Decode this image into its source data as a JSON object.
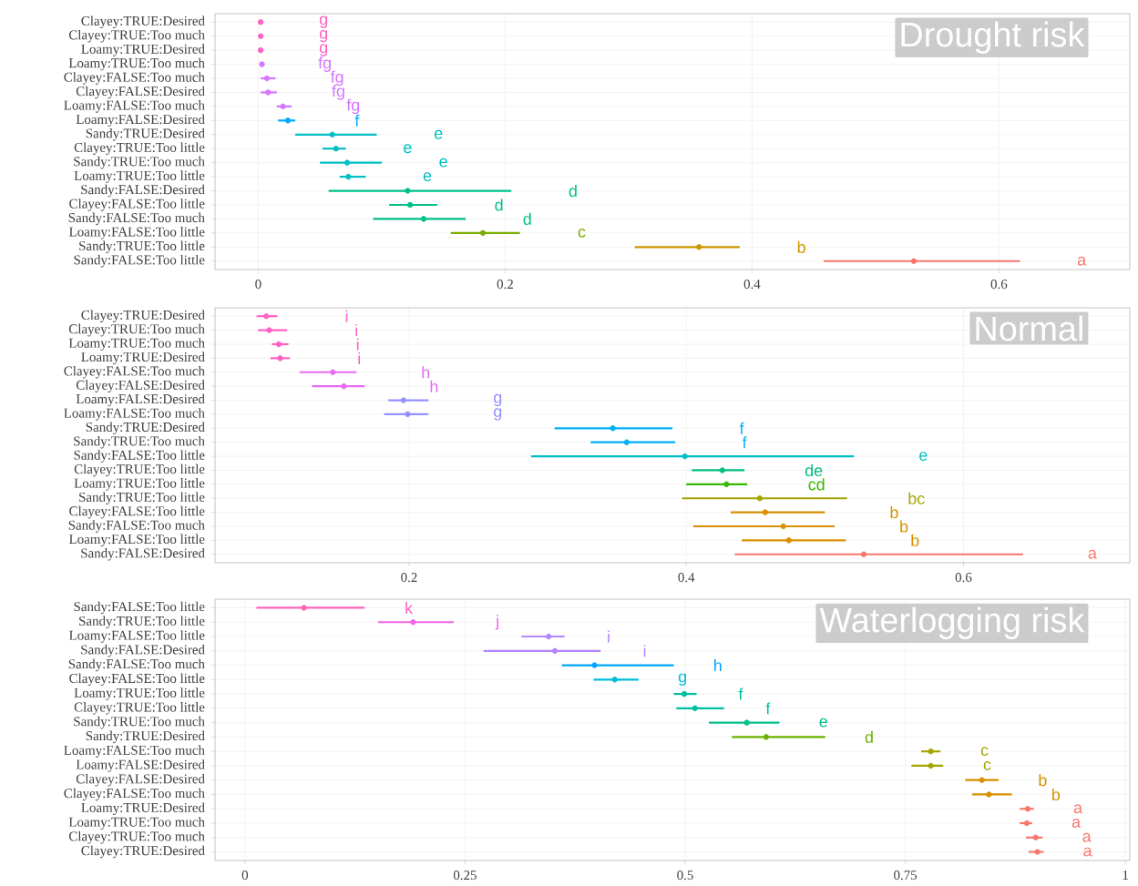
{
  "chart_data": [
    {
      "type": "scatter",
      "orientation": "horizontal",
      "title": "Drought risk",
      "grid": true,
      "marker": "circle",
      "categories": [
        "Clayey:TRUE:Desired",
        "Clayey:TRUE:Too much",
        "Loamy:TRUE:Desired",
        "Loamy:TRUE:Too much",
        "Clayey:FALSE:Too much",
        "Clayey:FALSE:Desired",
        "Loamy:FALSE:Too much",
        "Loamy:FALSE:Desired",
        "Sandy:TRUE:Desired",
        "Clayey:TRUE:Too little",
        "Sandy:TRUE:Too much",
        "Loamy:TRUE:Too little",
        "Sandy:FALSE:Desired",
        "Clayey:FALSE:Too little",
        "Sandy:FALSE:Too much",
        "Loamy:FALSE:Too little",
        "Sandy:TRUE:Too little",
        "Sandy:FALSE:Too little"
      ],
      "values": [
        0.002,
        0.002,
        0.002,
        0.003,
        0.007,
        0.008,
        0.02,
        0.024,
        0.06,
        0.063,
        0.072,
        0.073,
        0.121,
        0.123,
        0.134,
        0.182,
        0.357,
        0.531
      ],
      "errors": [
        [
          0.001,
          0.003
        ],
        [
          0.001,
          0.003
        ],
        [
          0.001,
          0.003
        ],
        [
          0.002,
          0.004
        ],
        [
          0.002,
          0.014
        ],
        [
          0.002,
          0.015
        ],
        [
          0.015,
          0.027
        ],
        [
          0.016,
          0.03
        ],
        [
          0.03,
          0.096
        ],
        [
          0.052,
          0.071
        ],
        [
          0.05,
          0.1
        ],
        [
          0.066,
          0.087
        ],
        [
          0.057,
          0.205
        ],
        [
          0.106,
          0.145
        ],
        [
          0.093,
          0.168
        ],
        [
          0.156,
          0.212
        ],
        [
          0.305,
          0.39
        ],
        [
          0.458,
          0.617
        ]
      ],
      "colors": [
        "#FF61C3",
        "#FF61C3",
        "#FF61C3",
        "#D575FE",
        "#D575FE",
        "#D575FE",
        "#D575FE",
        "#00A9FF",
        "#00BFC4",
        "#00BFC4",
        "#00BFC4",
        "#00BFC4",
        "#00C08B",
        "#00C08B",
        "#00C08B",
        "#7CAE00",
        "#CD9600",
        "#F8766D"
      ],
      "xlim": [
        -0.035,
        0.706
      ],
      "xticks": [
        0,
        0.2,
        0.4,
        0.6
      ],
      "annotations": [
        "g",
        "g",
        "g",
        "fg",
        "fg",
        "fg",
        "fg",
        "f",
        "e",
        "e",
        "e",
        "e",
        "d",
        "d",
        "d",
        "c",
        "b",
        "a"
      ]
    },
    {
      "type": "scatter",
      "orientation": "horizontal",
      "title": "Normal",
      "grid": true,
      "marker": "circle",
      "categories": [
        "Clayey:TRUE:Desired",
        "Clayey:TRUE:Too much",
        "Loamy:TRUE:Too much",
        "Loamy:TRUE:Desired",
        "Clayey:FALSE:Too much",
        "Clayey:FALSE:Desired",
        "Loamy:FALSE:Desired",
        "Loamy:FALSE:Too much",
        "Sandy:TRUE:Desired",
        "Sandy:TRUE:Too much",
        "Sandy:FALSE:Too little",
        "Clayey:TRUE:Too little",
        "Loamy:TRUE:Too little",
        "Sandy:TRUE:Too little",
        "Clayey:FALSE:Too little",
        "Sandy:FALSE:Too much",
        "Loamy:FALSE:Too little",
        "Sandy:FALSE:Desired"
      ],
      "values": [
        0.097,
        0.099,
        0.106,
        0.107,
        0.145,
        0.153,
        0.196,
        0.199,
        0.347,
        0.357,
        0.399,
        0.426,
        0.429,
        0.453,
        0.457,
        0.47,
        0.474,
        0.528
      ],
      "errors": [
        [
          0.09,
          0.105
        ],
        [
          0.091,
          0.112
        ],
        [
          0.101,
          0.113
        ],
        [
          0.1,
          0.114
        ],
        [
          0.121,
          0.162
        ],
        [
          0.13,
          0.168
        ],
        [
          0.185,
          0.214
        ],
        [
          0.182,
          0.214
        ],
        [
          0.305,
          0.39
        ],
        [
          0.331,
          0.392
        ],
        [
          0.288,
          0.521
        ],
        [
          0.404,
          0.442
        ],
        [
          0.4,
          0.444
        ],
        [
          0.397,
          0.516
        ],
        [
          0.432,
          0.5
        ],
        [
          0.405,
          0.507
        ],
        [
          0.44,
          0.515
        ],
        [
          0.435,
          0.643
        ]
      ],
      "colors": [
        "#FF61C3",
        "#FF61C3",
        "#FF61C3",
        "#FF61C3",
        "#E76BF3",
        "#E76BF3",
        "#9590FF",
        "#9590FF",
        "#00B0F6",
        "#00B0F6",
        "#00BFC4",
        "#00BF7D",
        "#39B600",
        "#A3A500",
        "#D89000",
        "#D89000",
        "#D89000",
        "#F8766D"
      ],
      "xlim": [
        0.06,
        0.72
      ],
      "xticks": [
        0.2,
        0.4,
        0.6
      ],
      "annotations": [
        "i",
        "i",
        "i",
        "i",
        "h",
        "h",
        "g",
        "g",
        "f",
        "f",
        "e",
        "de",
        "cd",
        "bc",
        "b",
        "b",
        "b",
        "a"
      ]
    },
    {
      "type": "scatter",
      "orientation": "horizontal",
      "title": "Waterlogging risk",
      "grid": true,
      "marker": "circle",
      "categories": [
        "Sandy:FALSE:Too little",
        "Sandy:TRUE:Too little",
        "Loamy:FALSE:Too little",
        "Sandy:FALSE:Desired",
        "Sandy:FALSE:Too much",
        "Clayey:FALSE:Too little",
        "Loamy:TRUE:Too little",
        "Clayey:TRUE:Too little",
        "Sandy:TRUE:Too much",
        "Sandy:TRUE:Desired",
        "Loamy:FALSE:Too much",
        "Loamy:FALSE:Desired",
        "Clayey:FALSE:Desired",
        "Clayey:FALSE:Too much",
        "Loamy:TRUE:Desired",
        "Loamy:TRUE:Too much",
        "Clayey:TRUE:Too much",
        "Clayey:TRUE:Desired"
      ],
      "values": [
        0.067,
        0.191,
        0.345,
        0.352,
        0.397,
        0.42,
        0.499,
        0.511,
        0.57,
        0.592,
        0.779,
        0.779,
        0.837,
        0.845,
        0.889,
        0.888,
        0.898,
        0.9
      ],
      "errors": [
        [
          0.013,
          0.136
        ],
        [
          0.151,
          0.237
        ],
        [
          0.314,
          0.363
        ],
        [
          0.271,
          0.404
        ],
        [
          0.36,
          0.487
        ],
        [
          0.396,
          0.447
        ],
        [
          0.487,
          0.513
        ],
        [
          0.49,
          0.544
        ],
        [
          0.527,
          0.607
        ],
        [
          0.553,
          0.659
        ],
        [
          0.768,
          0.79
        ],
        [
          0.757,
          0.793
        ],
        [
          0.818,
          0.856
        ],
        [
          0.826,
          0.871
        ],
        [
          0.88,
          0.896
        ],
        [
          0.88,
          0.894
        ],
        [
          0.887,
          0.906
        ],
        [
          0.89,
          0.907
        ]
      ],
      "colors": [
        "#FF62BC",
        "#F066EA",
        "#B385FF",
        "#B385FF",
        "#00A5FF",
        "#00BCD8",
        "#00BFA0",
        "#00BFA0",
        "#00C08B",
        "#6BB100",
        "#A3A500",
        "#A3A500",
        "#D89000",
        "#D89000",
        "#F8766D",
        "#F8766D",
        "#F8766D",
        "#F8766D"
      ],
      "xlim": [
        -0.034,
        1.005
      ],
      "xticks": [
        0,
        0.25,
        0.5,
        0.75,
        1
      ],
      "annotations": [
        "k",
        "j",
        "i",
        "i",
        "h",
        "g",
        "f",
        "f",
        "e",
        "d",
        "c",
        "c",
        "b",
        "b",
        "a",
        "a",
        "a",
        "a"
      ]
    }
  ]
}
